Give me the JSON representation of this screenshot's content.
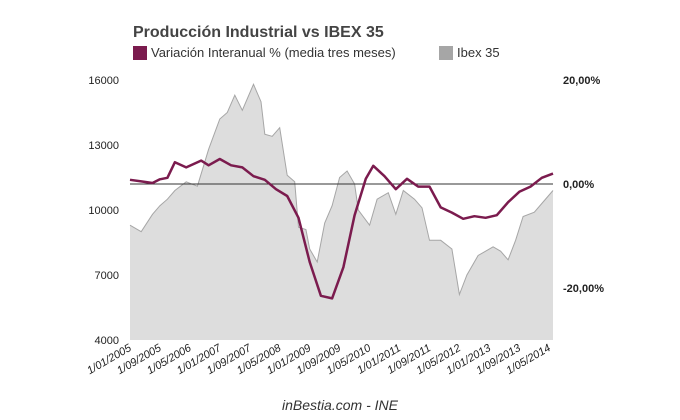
{
  "chart_data": {
    "type": "line",
    "title": "Producción Industrial vs IBEX 35",
    "source": "inBestia.com - INE",
    "legend_position": "top-left",
    "colors": {
      "production": "#7b1b4e",
      "ibex_fill": "#dddddd",
      "ibex_line": "#a6a6a6",
      "zero_line": "#333333"
    },
    "x_ticks": [
      "1/01/2005",
      "1/09/2005",
      "1/05/2006",
      "1/01/2007",
      "1/09/2007",
      "1/05/2008",
      "1/01/2009",
      "1/09/2009",
      "1/05/2010",
      "1/01/2011",
      "1/09/2011",
      "1/05/2012",
      "1/01/2013",
      "1/09/2013",
      "1/05/2014"
    ],
    "y_left": {
      "ticks": [
        "16000",
        "13000",
        "10000",
        "7000",
        "4000"
      ],
      "range": [
        4000,
        16000
      ]
    },
    "y_right": {
      "ticks": [
        "20,00%",
        "0,00%",
        "-20,00%"
      ],
      "range": [
        -30,
        20
      ]
    },
    "series": [
      {
        "name": "Variación Interanual % (media tres meses)",
        "axis": "right",
        "kind": "line",
        "points": [
          [
            "2005-01",
            0.8
          ],
          [
            "2005-04",
            0.5
          ],
          [
            "2005-07",
            0.2
          ],
          [
            "2005-09",
            0.9
          ],
          [
            "2005-11",
            1.2
          ],
          [
            "2006-01",
            4.2
          ],
          [
            "2006-04",
            3.2
          ],
          [
            "2006-08",
            4.5
          ],
          [
            "2006-10",
            3.6
          ],
          [
            "2007-01",
            4.8
          ],
          [
            "2007-04",
            3.6
          ],
          [
            "2007-07",
            3.2
          ],
          [
            "2007-10",
            1.5
          ],
          [
            "2008-01",
            0.8
          ],
          [
            "2008-04",
            -1.0
          ],
          [
            "2008-07",
            -2.3
          ],
          [
            "2008-10",
            -6.5
          ],
          [
            "2009-01",
            -15
          ],
          [
            "2009-04",
            -21.5
          ],
          [
            "2009-07",
            -22.0
          ],
          [
            "2009-10",
            -16.0
          ],
          [
            "2010-01",
            -6.0
          ],
          [
            "2010-04",
            1.0
          ],
          [
            "2010-06",
            3.5
          ],
          [
            "2010-09",
            1.5
          ],
          [
            "2010-12",
            -1.0
          ],
          [
            "2011-03",
            1.0
          ],
          [
            "2011-06",
            -0.5
          ],
          [
            "2011-09",
            -0.5
          ],
          [
            "2011-12",
            -4.5
          ],
          [
            "2012-03",
            -5.5
          ],
          [
            "2012-06",
            -6.7
          ],
          [
            "2012-09",
            -6.2
          ],
          [
            "2012-12",
            -6.5
          ],
          [
            "2013-03",
            -6.0
          ],
          [
            "2013-06",
            -3.5
          ],
          [
            "2013-09",
            -1.5
          ],
          [
            "2013-12",
            -0.5
          ],
          [
            "2014-03",
            1.2
          ],
          [
            "2014-06",
            2.0
          ]
        ]
      },
      {
        "name": "Ibex 35",
        "axis": "left",
        "kind": "area",
        "points": [
          [
            "2005-01",
            9300
          ],
          [
            "2005-04",
            9000
          ],
          [
            "2005-07",
            9800
          ],
          [
            "2005-09",
            10200
          ],
          [
            "2005-11",
            10500
          ],
          [
            "2006-01",
            10900
          ],
          [
            "2006-04",
            11300
          ],
          [
            "2006-07",
            11100
          ],
          [
            "2006-10",
            12800
          ],
          [
            "2007-01",
            14200
          ],
          [
            "2007-03",
            14500
          ],
          [
            "2007-05",
            15300
          ],
          [
            "2007-07",
            14600
          ],
          [
            "2007-10",
            15800
          ],
          [
            "2007-12",
            15000
          ],
          [
            "2008-01",
            13500
          ],
          [
            "2008-03",
            13400
          ],
          [
            "2008-05",
            13800
          ],
          [
            "2008-07",
            11600
          ],
          [
            "2008-09",
            11300
          ],
          [
            "2008-10",
            9200
          ],
          [
            "2008-12",
            9100
          ],
          [
            "2009-01",
            8200
          ],
          [
            "2009-03",
            7600
          ],
          [
            "2009-05",
            9400
          ],
          [
            "2009-07",
            10200
          ],
          [
            "2009-09",
            11500
          ],
          [
            "2009-11",
            11800
          ],
          [
            "2010-01",
            11200
          ],
          [
            "2010-02",
            10000
          ],
          [
            "2010-05",
            9300
          ],
          [
            "2010-07",
            10500
          ],
          [
            "2010-10",
            10800
          ],
          [
            "2010-12",
            9800
          ],
          [
            "2011-02",
            10900
          ],
          [
            "2011-05",
            10500
          ],
          [
            "2011-07",
            10100
          ],
          [
            "2011-09",
            8600
          ],
          [
            "2011-12",
            8600
          ],
          [
            "2012-03",
            8200
          ],
          [
            "2012-05",
            6100
          ],
          [
            "2012-07",
            7000
          ],
          [
            "2012-10",
            7900
          ],
          [
            "2012-12",
            8100
          ],
          [
            "2013-02",
            8300
          ],
          [
            "2013-04",
            8100
          ],
          [
            "2013-06",
            7700
          ],
          [
            "2013-08",
            8600
          ],
          [
            "2013-10",
            9700
          ],
          [
            "2014-01",
            9900
          ],
          [
            "2014-03",
            10300
          ],
          [
            "2014-06",
            10900
          ]
        ]
      }
    ]
  }
}
